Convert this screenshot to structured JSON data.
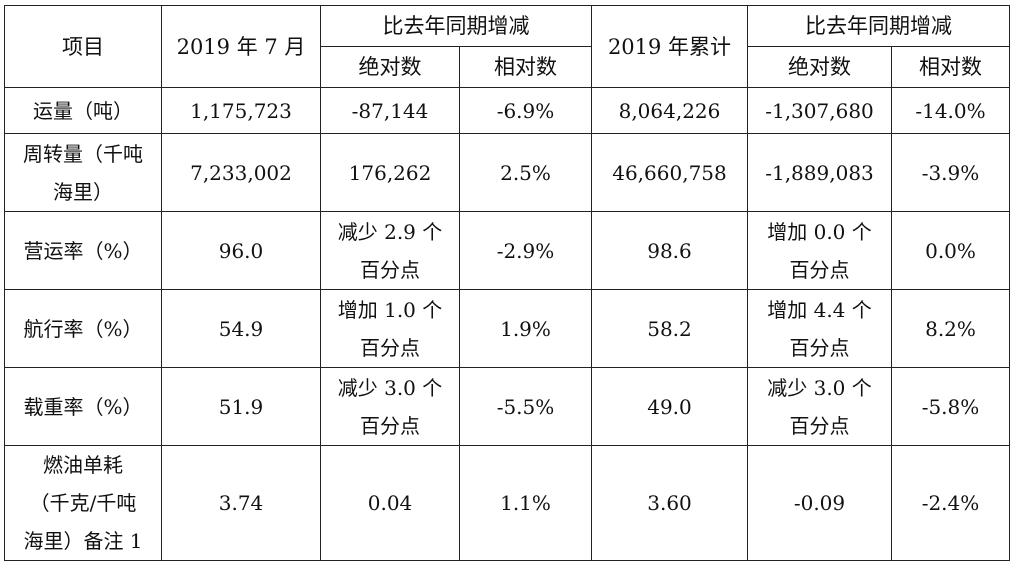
{
  "header": {
    "item": "项目",
    "month": "2019 年 7 月",
    "yoy_month": "比去年同期增减",
    "cumulative": "2019 年累计",
    "yoy_cum": "比去年同期增减",
    "abs_month": "绝对数",
    "rel_month": "相对数",
    "abs_cum": "绝对数",
    "rel_cum": "相对数"
  },
  "rows": [
    {
      "item": [
        "运量（吨）"
      ],
      "month": [
        "1,175,723"
      ],
      "abs": [
        "-87,144"
      ],
      "rel": [
        "-6.9%"
      ],
      "cum": [
        "8,064,226"
      ],
      "cum_abs": [
        "-1,307,680"
      ],
      "cum_rel": [
        "-14.0%"
      ]
    },
    {
      "item": [
        "周转量（千吨",
        "海里）"
      ],
      "month": [
        "7,233,002"
      ],
      "abs": [
        "176,262"
      ],
      "rel": [
        "2.5%"
      ],
      "cum": [
        "46,660,758"
      ],
      "cum_abs": [
        "-1,889,083"
      ],
      "cum_rel": [
        "-3.9%"
      ]
    },
    {
      "item": [
        "营运率（%）"
      ],
      "month": [
        "96.0"
      ],
      "abs": [
        "减少 2.9 个",
        "百分点"
      ],
      "rel": [
        "-2.9%"
      ],
      "cum": [
        "98.6"
      ],
      "cum_abs": [
        "增加 0.0 个",
        "百分点"
      ],
      "cum_rel": [
        "0.0%"
      ]
    },
    {
      "item": [
        "航行率（%）"
      ],
      "month": [
        "54.9"
      ],
      "abs": [
        "增加 1.0 个",
        "百分点"
      ],
      "rel": [
        "1.9%"
      ],
      "cum": [
        "58.2"
      ],
      "cum_abs": [
        "增加 4.4 个",
        "百分点"
      ],
      "cum_rel": [
        "8.2%"
      ]
    },
    {
      "item": [
        "载重率（%）"
      ],
      "month": [
        "51.9"
      ],
      "abs": [
        "减少 3.0 个",
        "百分点"
      ],
      "rel": [
        "-5.5%"
      ],
      "cum": [
        "49.0"
      ],
      "cum_abs": [
        "减少 3.0 个",
        "百分点"
      ],
      "cum_rel": [
        "-5.8%"
      ]
    },
    {
      "item": [
        "燃油单耗",
        "（千克/千吨",
        "海里）备注 1"
      ],
      "month": [
        "3.74"
      ],
      "abs": [
        "0.04"
      ],
      "rel": [
        "1.1%"
      ],
      "cum": [
        "3.60"
      ],
      "cum_abs": [
        "-0.09"
      ],
      "cum_rel": [
        "-2.4%"
      ]
    }
  ]
}
